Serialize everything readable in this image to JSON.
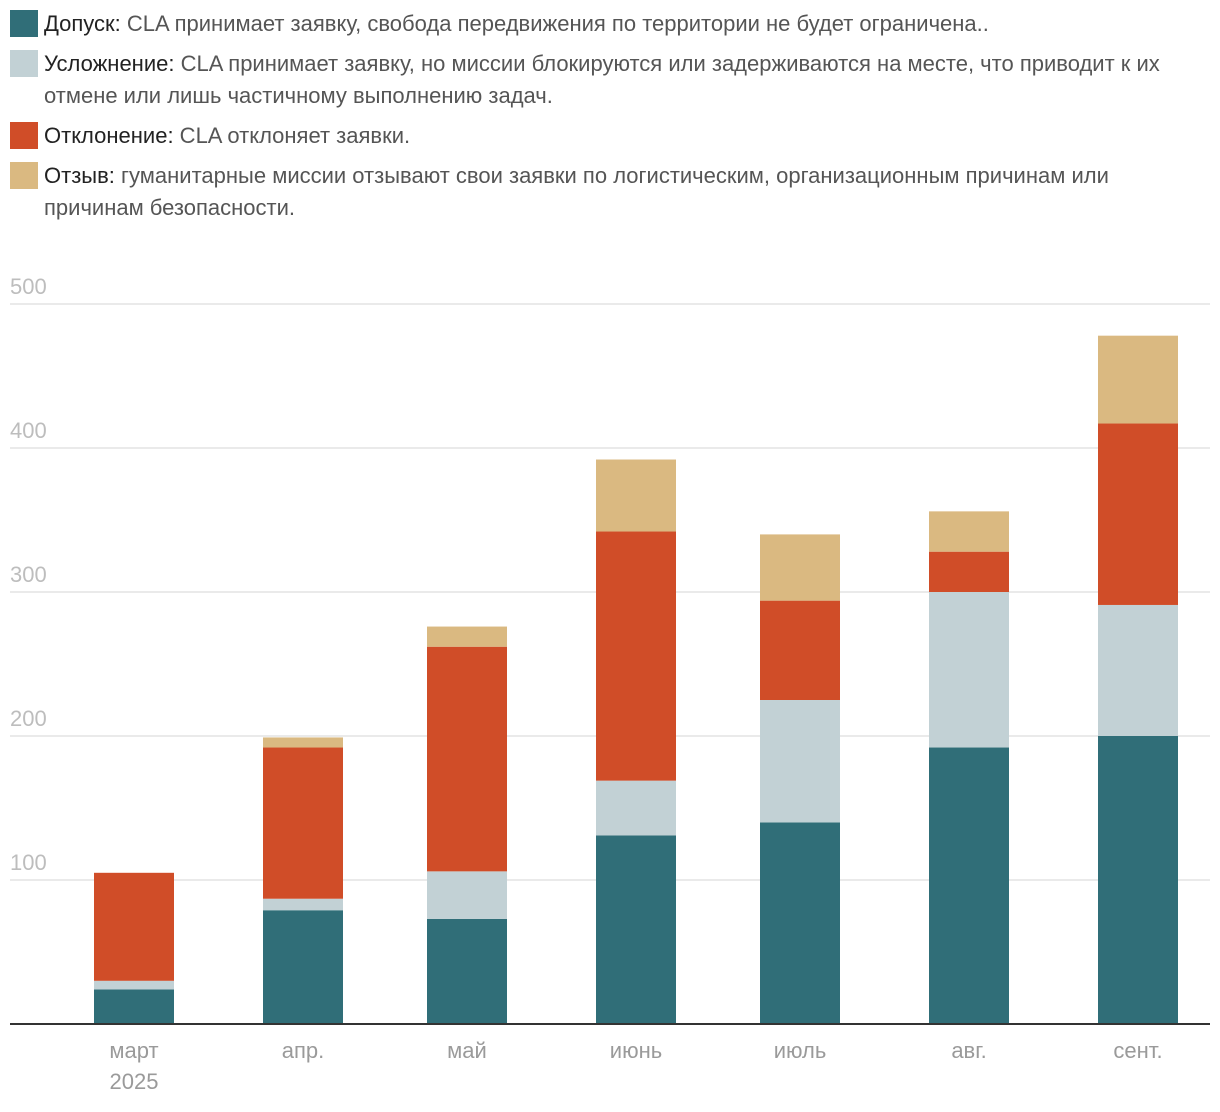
{
  "legend": {
    "items": [
      {
        "key": "admit",
        "term": "Допуск:",
        "text": " CLA принимает заявку, свобода передвижения по территории не будет ограничена..",
        "color": "#306e78"
      },
      {
        "key": "complication",
        "term": "Усложнение:",
        "text": " CLA принимает заявку, но миссии блокируются или задерживаются на месте, что приводит к их отмене или лишь частичному выполнению задач.",
        "color": "#c2d1d5"
      },
      {
        "key": "rejection",
        "term": "Отклонение:",
        "text": " CLA отклоняет заявки.",
        "color": "#d04d28"
      },
      {
        "key": "withdrawal",
        "term": "Отзыв:",
        "text": " гуманитарные миссии отзывают свои заявки по логистическим, организационным причинам или причинам безопасности.",
        "color": "#dab981"
      }
    ]
  },
  "chart_data": {
    "type": "bar",
    "stacked": true,
    "title": "",
    "xlabel": "",
    "ylabel": "",
    "ylim": [
      0,
      500
    ],
    "yticks": [
      100,
      200,
      300,
      400,
      500
    ],
    "grid": true,
    "legend_position": "top",
    "categories": [
      "март",
      "апр.",
      "май",
      "июнь",
      "июль",
      "авг.",
      "сент."
    ],
    "category_sublabels": [
      "2025",
      "",
      "",
      "",
      "",
      "",
      ""
    ],
    "series": [
      {
        "name": "Допуск",
        "color": "#306e78",
        "values": [
          24,
          79,
          73,
          131,
          140,
          192,
          200
        ]
      },
      {
        "name": "Усложнение",
        "color": "#c2d1d5",
        "values": [
          6,
          8,
          33,
          38,
          85,
          108,
          91
        ]
      },
      {
        "name": "Отклонение",
        "color": "#d04d28",
        "values": [
          75,
          105,
          156,
          173,
          69,
          28,
          126
        ]
      },
      {
        "name": "Отзыв",
        "color": "#dab981",
        "values": [
          0,
          7,
          14,
          50,
          46,
          28,
          61
        ]
      }
    ]
  }
}
